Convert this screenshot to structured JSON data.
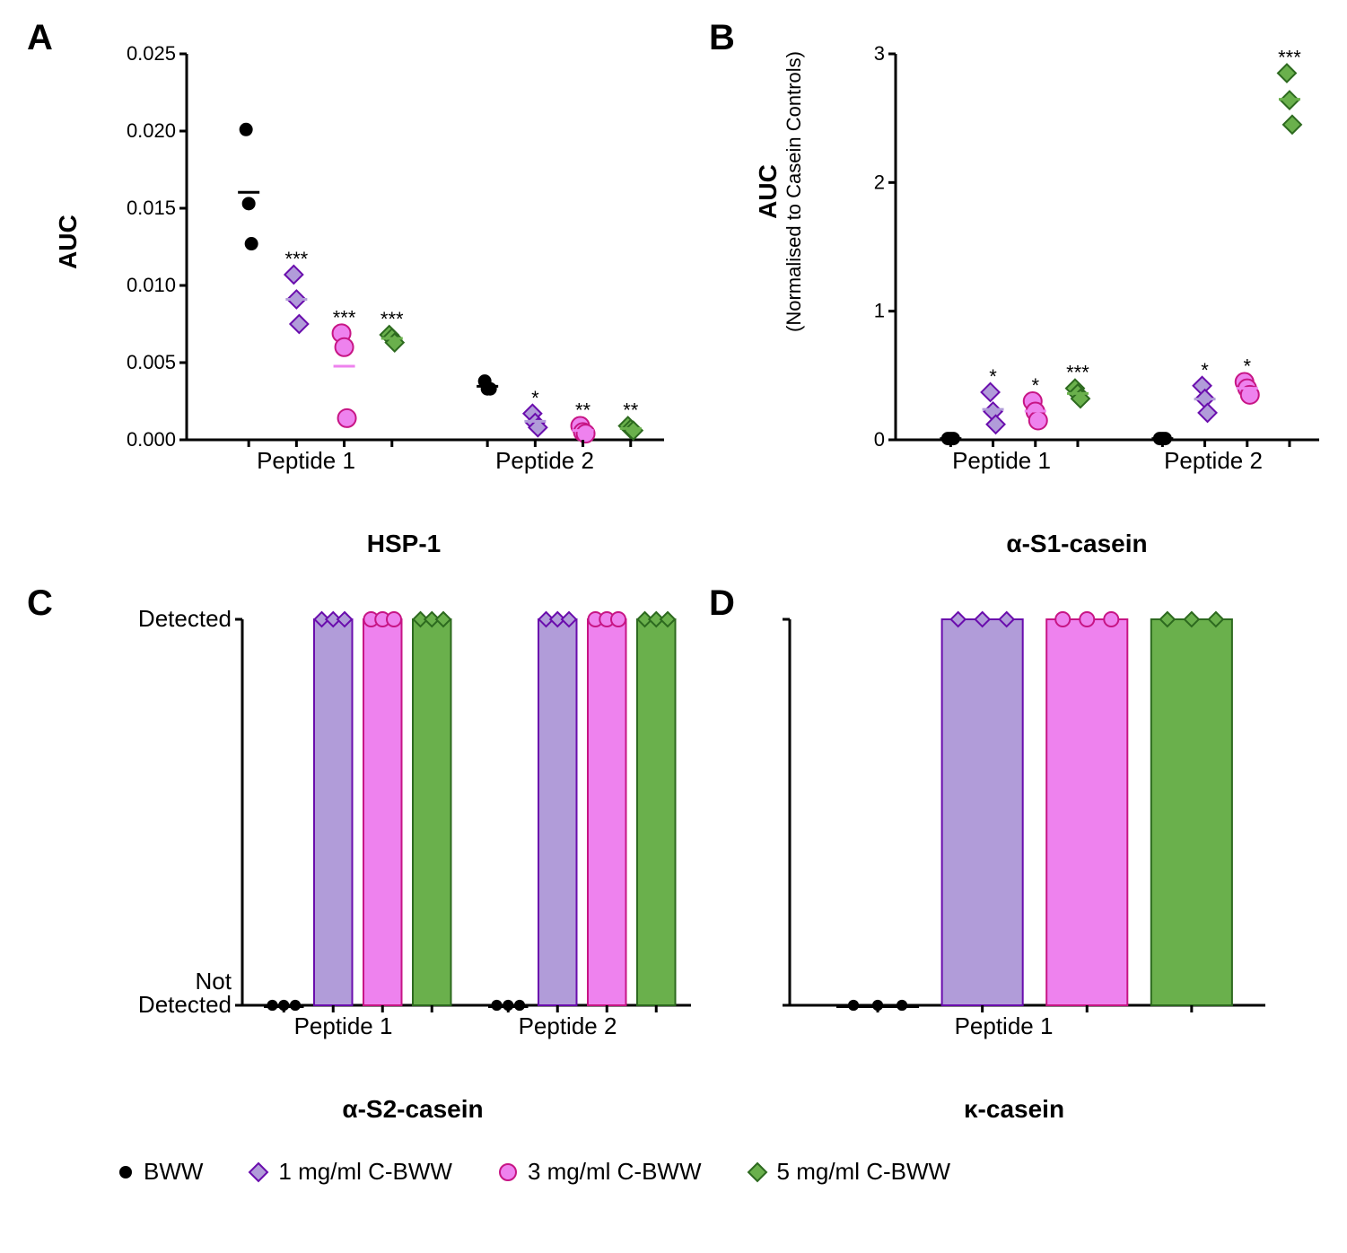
{
  "colors": {
    "bww_fill": "#000000",
    "bww_stroke": "#000000",
    "c1_fill": "#b19cd9",
    "c1_stroke": "#6a0dad",
    "c3_fill": "#ee82ee",
    "c3_stroke": "#c71585",
    "c5_fill": "#6ab04c",
    "c5_stroke": "#2d6a1f",
    "axis": "#000000",
    "bg": "#ffffff",
    "bar_bww_fill": "#ffffff"
  },
  "legend": {
    "bww": "BWW",
    "c1": "1 mg/ml C-BWW",
    "c3": "3 mg/ml C-BWW",
    "c5": "5 mg/ml C-BWW"
  },
  "panelA": {
    "label": "A",
    "ylabel": "AUC",
    "xgroups": [
      "Peptide 1",
      "Peptide 2"
    ],
    "title": "HSP-1",
    "ylim": [
      0,
      0.025
    ],
    "yticks": [
      0.0,
      0.005,
      0.01,
      0.015,
      0.02,
      0.025
    ],
    "yticklabels": [
      "0.000",
      "0.005",
      "0.010",
      "0.015",
      "0.020",
      "0.025"
    ],
    "series": [
      {
        "group": "Peptide 1",
        "cond": "bww",
        "vals": [
          0.0201,
          0.0153,
          0.0127
        ],
        "sig": ""
      },
      {
        "group": "Peptide 1",
        "cond": "c1",
        "vals": [
          0.0107,
          0.0091,
          0.0075
        ],
        "sig": "***"
      },
      {
        "group": "Peptide 1",
        "cond": "c3",
        "vals": [
          0.0069,
          0.006,
          0.0014
        ],
        "sig": "***"
      },
      {
        "group": "Peptide 1",
        "cond": "c5",
        "vals": [
          0.0068,
          0.0066,
          0.0063
        ],
        "sig": "***"
      },
      {
        "group": "Peptide 2",
        "cond": "bww",
        "vals": [
          0.0038,
          0.0033,
          0.0033
        ],
        "sig": ""
      },
      {
        "group": "Peptide 2",
        "cond": "c1",
        "vals": [
          0.0017,
          0.0011,
          0.0008
        ],
        "sig": "*"
      },
      {
        "group": "Peptide 2",
        "cond": "c3",
        "vals": [
          0.0009,
          0.0005,
          0.0004
        ],
        "sig": "**"
      },
      {
        "group": "Peptide 2",
        "cond": "c5",
        "vals": [
          0.0009,
          0.0007,
          0.0006
        ],
        "sig": "**"
      }
    ]
  },
  "panelB": {
    "label": "B",
    "ylabel": "AUC",
    "ysublabel": "(Normalised to Casein Controls)",
    "xgroups": [
      "Peptide 1",
      "Peptide 2"
    ],
    "title": "α-S1-casein",
    "ylim": [
      0,
      3
    ],
    "yticks": [
      0,
      1,
      2,
      3
    ],
    "yticklabels": [
      "0",
      "1",
      "2",
      "3"
    ],
    "series": [
      {
        "group": "Peptide 1",
        "cond": "bww",
        "vals": [
          0.01,
          0.01,
          0.01
        ],
        "sig": ""
      },
      {
        "group": "Peptide 1",
        "cond": "c1",
        "vals": [
          0.37,
          0.22,
          0.12
        ],
        "sig": "*"
      },
      {
        "group": "Peptide 1",
        "cond": "c3",
        "vals": [
          0.3,
          0.22,
          0.15
        ],
        "sig": "*"
      },
      {
        "group": "Peptide 1",
        "cond": "c5",
        "vals": [
          0.4,
          0.36,
          0.32
        ],
        "sig": "***"
      },
      {
        "group": "Peptide 2",
        "cond": "bww",
        "vals": [
          0.01,
          0.01,
          0.01
        ],
        "sig": ""
      },
      {
        "group": "Peptide 2",
        "cond": "c1",
        "vals": [
          0.42,
          0.32,
          0.21
        ],
        "sig": "*"
      },
      {
        "group": "Peptide 2",
        "cond": "c3",
        "vals": [
          0.45,
          0.4,
          0.35
        ],
        "sig": "*"
      },
      {
        "group": "Peptide 2",
        "cond": "c5",
        "vals": [
          2.85,
          2.64,
          2.45
        ],
        "sig": "***"
      }
    ]
  },
  "panelC": {
    "label": "C",
    "ylabels": [
      "Not\nDetected",
      "Detected"
    ],
    "xgroups": [
      "Peptide 1",
      "Peptide 2"
    ],
    "title": "α-S2-casein",
    "bars": [
      {
        "group": "Peptide 1",
        "cond": "bww",
        "detected": 0
      },
      {
        "group": "Peptide 1",
        "cond": "c1",
        "detected": 1
      },
      {
        "group": "Peptide 1",
        "cond": "c3",
        "detected": 1
      },
      {
        "group": "Peptide 1",
        "cond": "c5",
        "detected": 1
      },
      {
        "group": "Peptide 2",
        "cond": "bww",
        "detected": 0
      },
      {
        "group": "Peptide 2",
        "cond": "c1",
        "detected": 1
      },
      {
        "group": "Peptide 2",
        "cond": "c3",
        "detected": 1
      },
      {
        "group": "Peptide 2",
        "cond": "c5",
        "detected": 1
      }
    ]
  },
  "panelD": {
    "label": "D",
    "ylabels": [
      "",
      ""
    ],
    "xgroups": [
      "Peptide 1"
    ],
    "title": "κ-casein",
    "bars": [
      {
        "group": "Peptide 1",
        "cond": "bww",
        "detected": 0
      },
      {
        "group": "Peptide 1",
        "cond": "c1",
        "detected": 1
      },
      {
        "group": "Peptide 1",
        "cond": "c3",
        "detected": 1
      },
      {
        "group": "Peptide 1",
        "cond": "c5",
        "detected": 1
      }
    ]
  },
  "layout": {
    "stroke_width": 3,
    "marker_size": 10,
    "sig_fontsize": 22,
    "tick_fontsize": 22,
    "group_fontsize": 26
  }
}
